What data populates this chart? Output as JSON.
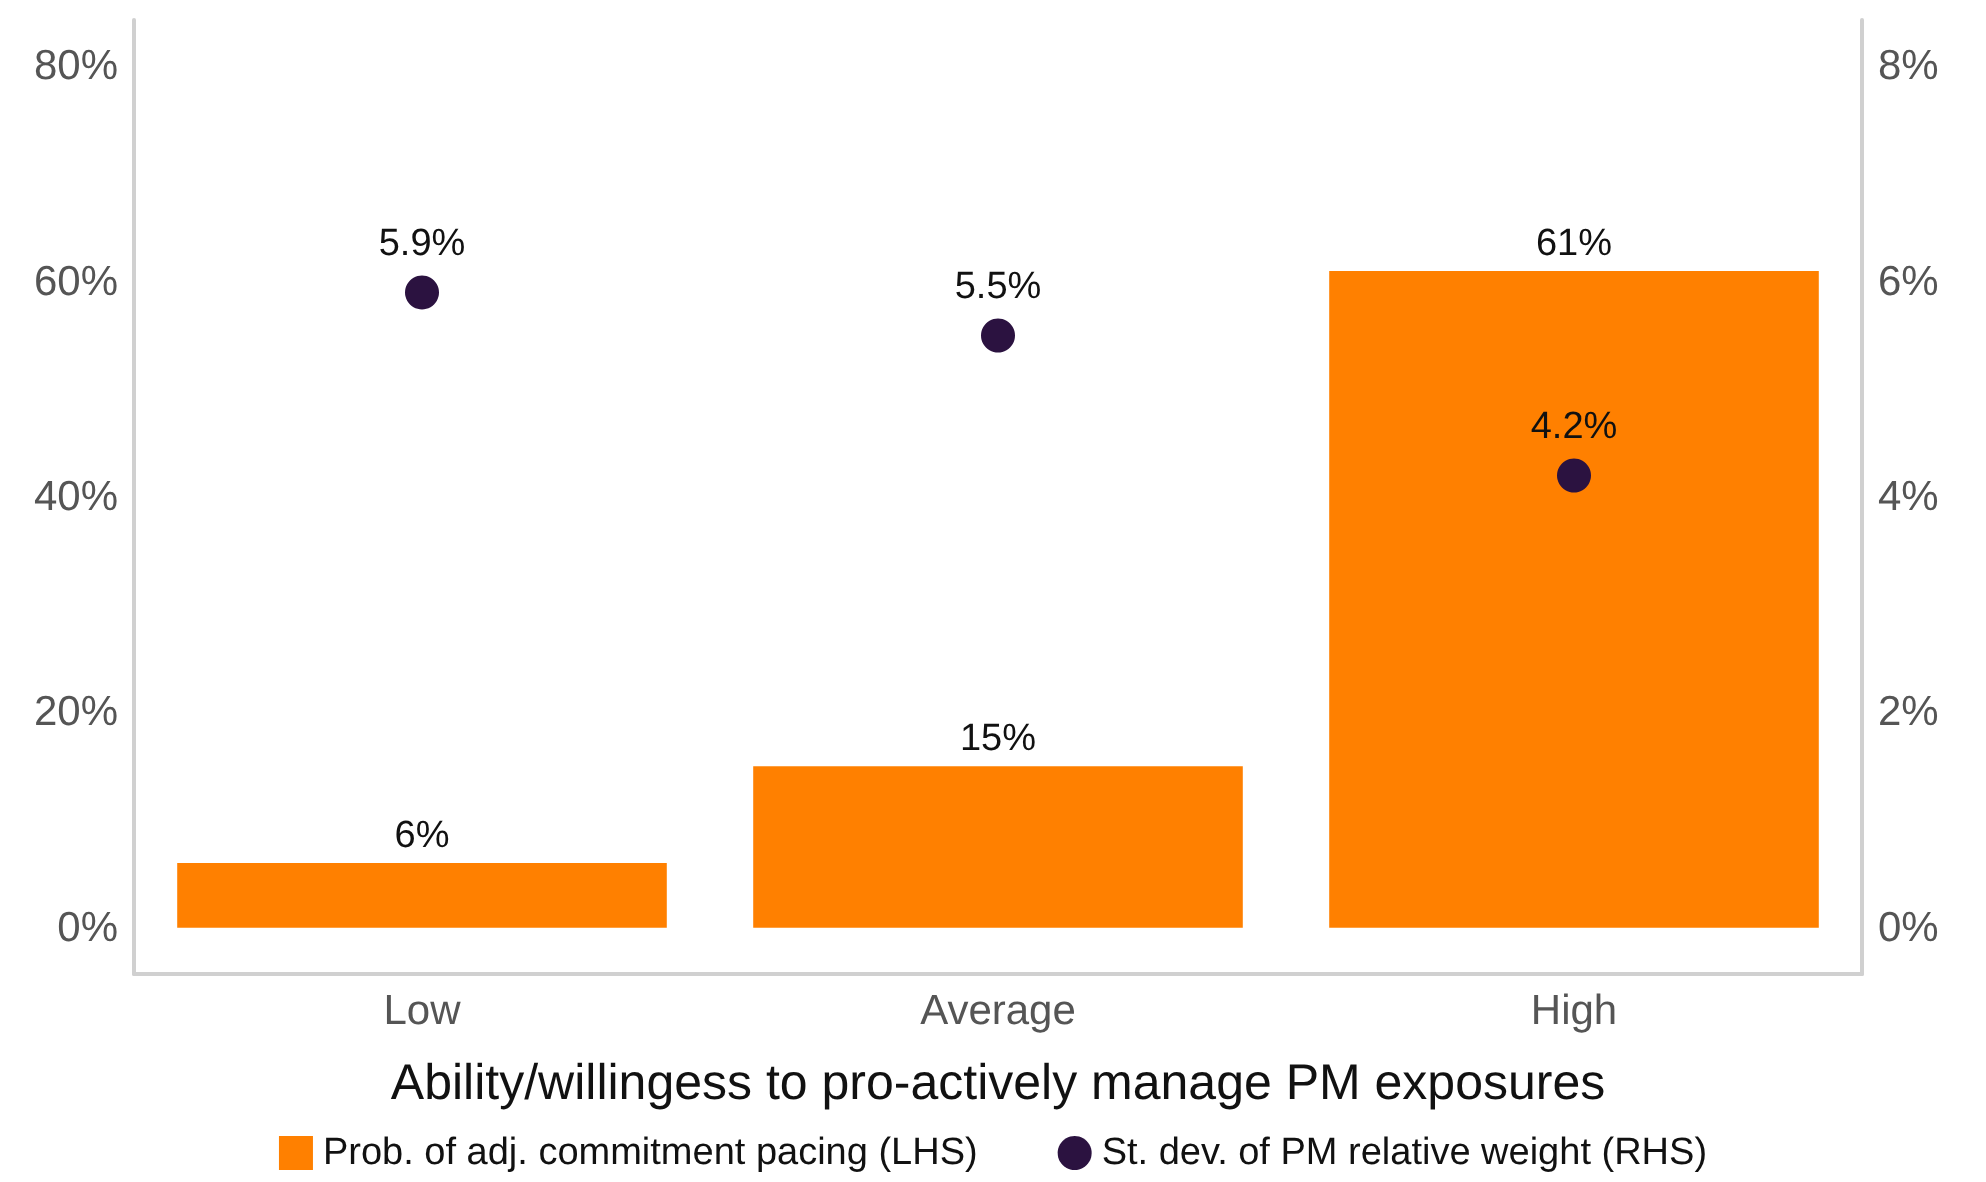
{
  "chart_data": {
    "type": "bar",
    "xlabel": "Ability/willingess to pro-actively manage PM exposures",
    "categories": [
      "Low",
      "Average",
      "High"
    ],
    "series": [
      {
        "name": "Prob. of adj. commitment pacing (LHS)",
        "color": "#ff8000",
        "values": [
          6,
          15,
          61
        ],
        "value_labels": [
          "6%",
          "15%",
          "61%"
        ]
      },
      {
        "name": "St. dev. of PM relative weight (RHS)",
        "type": "scatter",
        "axis": "y2",
        "x": [
          "Low",
          "Average",
          "High"
        ],
        "color": "#2b1240",
        "values": [
          5.9,
          5.5,
          4.2
        ],
        "value_labels": [
          "5.9%",
          "5.5%",
          "4.2%"
        ]
      }
    ],
    "ylim": [
      -4.3,
      84.3
    ],
    "yticks": [
      {
        "value": 0,
        "label": "0%"
      },
      {
        "value": 20,
        "label": "20%"
      },
      {
        "value": 40,
        "label": "40%"
      },
      {
        "value": 60,
        "label": "60%"
      },
      {
        "value": 80,
        "label": "80%"
      }
    ],
    "y2lim": [
      -0.43,
      8.43
    ],
    "y2ticks": [
      {
        "value": 0,
        "label": "0%"
      },
      {
        "value": 2,
        "label": "2%"
      },
      {
        "value": 4,
        "label": "4%"
      },
      {
        "value": 6,
        "label": "6%"
      },
      {
        "value": 8,
        "label": "8%"
      }
    ],
    "grid": false,
    "legend": "bottom",
    "marker": "circle"
  }
}
